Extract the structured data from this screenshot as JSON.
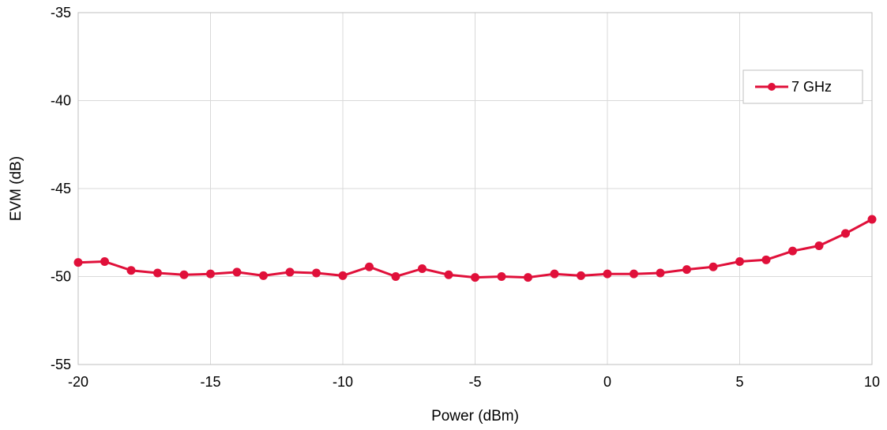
{
  "chart_data": {
    "type": "line",
    "title": "",
    "xlabel": "Power (dBm)",
    "ylabel": "EVM (dB)",
    "xlim": [
      -20,
      10
    ],
    "ylim": [
      -55,
      -35
    ],
    "xticks": [
      -20,
      -15,
      -10,
      -5,
      0,
      5,
      10
    ],
    "yticks": [
      -35,
      -40,
      -45,
      -50,
      -55
    ],
    "xtick_labels": [
      "-20",
      "-15",
      "-10",
      "-5",
      "0",
      "5",
      "10"
    ],
    "ytick_labels": [
      "-35",
      "-40",
      "-45",
      "-50",
      "-55"
    ],
    "grid": true,
    "legend_position": "top-right",
    "x": [
      -20,
      -19,
      -18,
      -17,
      -16,
      -15,
      -14,
      -13,
      -12,
      -11,
      -10,
      -9,
      -8,
      -7,
      -6,
      -5,
      -4,
      -3,
      -2,
      -1,
      0,
      1,
      2,
      3,
      4,
      5,
      6,
      7,
      8,
      9,
      10
    ],
    "series": [
      {
        "name": "7 GHz",
        "color": "#e0103a",
        "marker": "circle",
        "values": [
          -49.2,
          -49.15,
          -49.65,
          -49.8,
          -49.9,
          -49.85,
          -49.75,
          -49.95,
          -49.75,
          -49.8,
          -49.95,
          -49.45,
          -50.0,
          -49.55,
          -49.9,
          -50.05,
          -50.0,
          -50.05,
          -49.85,
          -49.95,
          -49.85,
          -49.85,
          -49.8,
          -49.6,
          -49.45,
          -49.15,
          -49.05,
          -48.55,
          -48.25,
          -47.55,
          -46.75
        ]
      }
    ]
  }
}
